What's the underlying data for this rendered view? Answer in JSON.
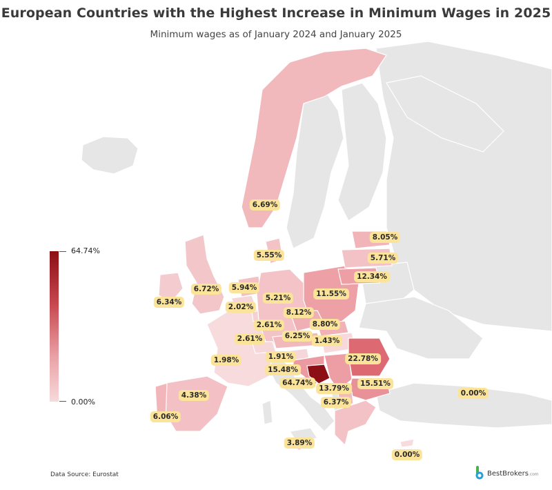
{
  "header": {
    "title": "European Countries with the Highest Increase in Minimum Wages in 2025",
    "subtitle": "Minimum wages as of January 2024 and January 2025"
  },
  "legend": {
    "max_label": "64.74%",
    "min_label": "0.00%",
    "max_color": "#8b0f14",
    "min_color": "#f7dadb"
  },
  "footer": {
    "source": "Data Source: Eurostat",
    "brand": "BestBrokers",
    "brand_suffix": ".com"
  },
  "colors": {
    "no_data": "#e6e6e6",
    "label_bg": "#fbe39a",
    "background": "#ffffff"
  },
  "countries": [
    {
      "id": "norway",
      "label": "6.69%"
    },
    {
      "id": "estonia",
      "label": "8.05%"
    },
    {
      "id": "latvia",
      "label": "5.71%"
    },
    {
      "id": "lithuania",
      "label": "12.34%"
    },
    {
      "id": "denmark",
      "label": "5.55%"
    },
    {
      "id": "uk",
      "label": "6.72%"
    },
    {
      "id": "ireland",
      "label": "6.34%"
    },
    {
      "id": "netherlands",
      "label": "5.94%"
    },
    {
      "id": "belgium",
      "label": "2.02%"
    },
    {
      "id": "germany",
      "label": "5.21%"
    },
    {
      "id": "poland",
      "label": "11.55%"
    },
    {
      "id": "czechia",
      "label": "8.12%"
    },
    {
      "id": "slovakia",
      "label": "8.80%"
    },
    {
      "id": "luxembourg",
      "label": "2.61%"
    },
    {
      "id": "france",
      "label": "2.61%"
    },
    {
      "id": "austria",
      "label": "6.25%"
    },
    {
      "id": "hungary",
      "label": "1.43%"
    },
    {
      "id": "slovenia",
      "label": "1.91%"
    },
    {
      "id": "croatia",
      "label": "15.48%"
    },
    {
      "id": "romania",
      "label": "22.78%"
    },
    {
      "id": "bosnia",
      "label": "64.74%"
    },
    {
      "id": "serbia",
      "label": "13.79%"
    },
    {
      "id": "bulgaria",
      "label": "15.51%"
    },
    {
      "id": "north-macedonia",
      "label": "6.37%"
    },
    {
      "id": "portugal",
      "label": "4.38%"
    },
    {
      "id": "spain",
      "label": "6.06%"
    },
    {
      "id": "switzerland",
      "label": "1.98%"
    },
    {
      "id": "turkey",
      "label": "0.00%"
    },
    {
      "id": "malta",
      "label": "3.89%"
    },
    {
      "id": "cyprus",
      "label": "0.00%"
    }
  ]
}
